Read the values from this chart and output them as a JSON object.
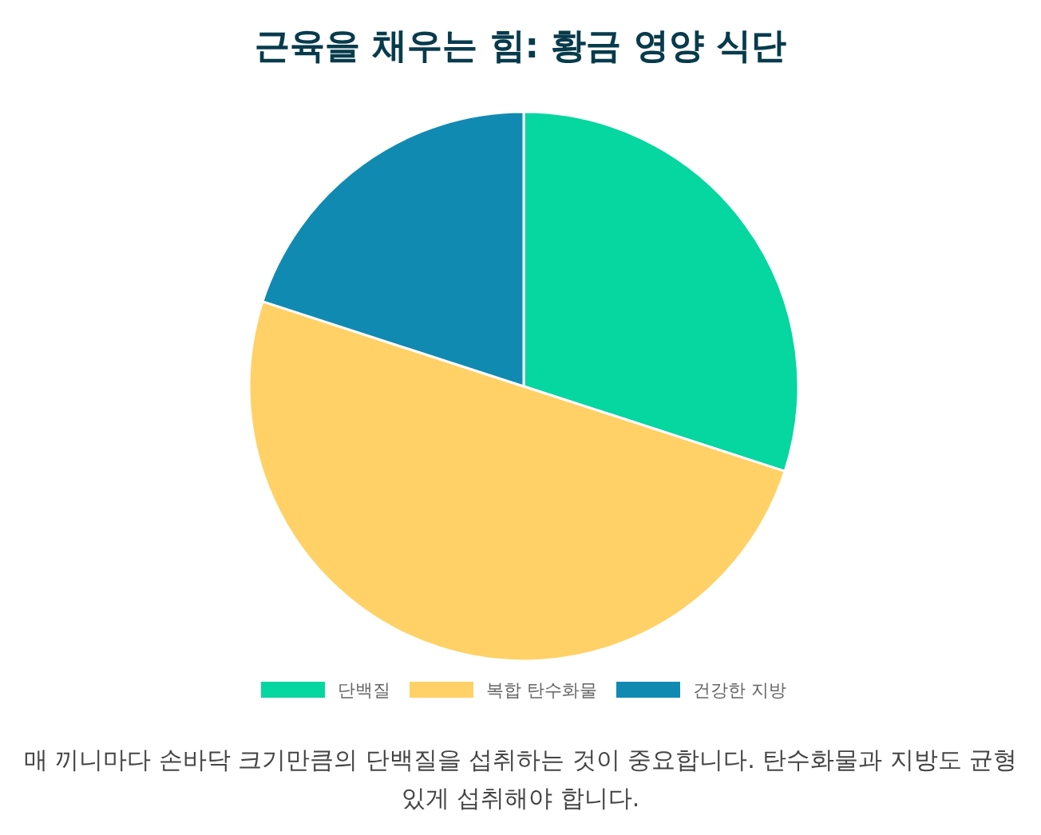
{
  "chart_data": {
    "type": "pie",
    "title": "근육을 채우는 힘: 황금 영양 식단",
    "categories": [
      "단백질",
      "복합 탄수화물",
      "건강한 지방"
    ],
    "values": [
      30,
      50,
      20
    ],
    "colors": [
      "#06d6a0",
      "#ffd166",
      "#118ab2"
    ],
    "legend": "bottom",
    "annotations": [
      "매 끼니마다 손바닥 크기만큼의 단백질을 섭취하는 것이 중요합니다. 탄수화물과 지방도 균형 있게 섭취해야 합니다."
    ]
  }
}
